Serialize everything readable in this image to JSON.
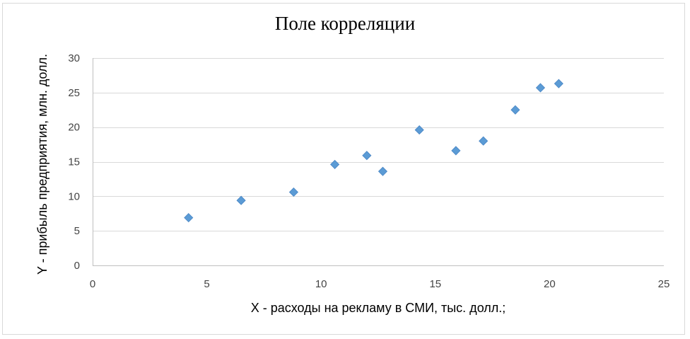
{
  "chart_data": {
    "type": "scatter",
    "title": "Поле корреляции",
    "xlabel": "X - расходы на рекламу в СМИ, тыс. долл.;",
    "ylabel": "Y - прибыль предприятия, млн. долл.",
    "xlim": [
      0,
      25
    ],
    "ylim": [
      0,
      30
    ],
    "xticks": [
      0,
      5,
      10,
      15,
      20,
      25
    ],
    "yticks": [
      0,
      5,
      10,
      15,
      20,
      25,
      30
    ],
    "grid": "horizontal",
    "marker": "diamond",
    "color": "#5b9bd5",
    "points": [
      {
        "x": 4.2,
        "y": 6.9
      },
      {
        "x": 6.5,
        "y": 9.4
      },
      {
        "x": 8.8,
        "y": 10.6
      },
      {
        "x": 10.6,
        "y": 14.6
      },
      {
        "x": 12.0,
        "y": 15.9
      },
      {
        "x": 12.7,
        "y": 13.6
      },
      {
        "x": 14.3,
        "y": 19.6
      },
      {
        "x": 15.9,
        "y": 16.6
      },
      {
        "x": 17.1,
        "y": 18.0
      },
      {
        "x": 18.5,
        "y": 22.5
      },
      {
        "x": 19.6,
        "y": 25.7
      },
      {
        "x": 20.4,
        "y": 26.3
      }
    ]
  }
}
